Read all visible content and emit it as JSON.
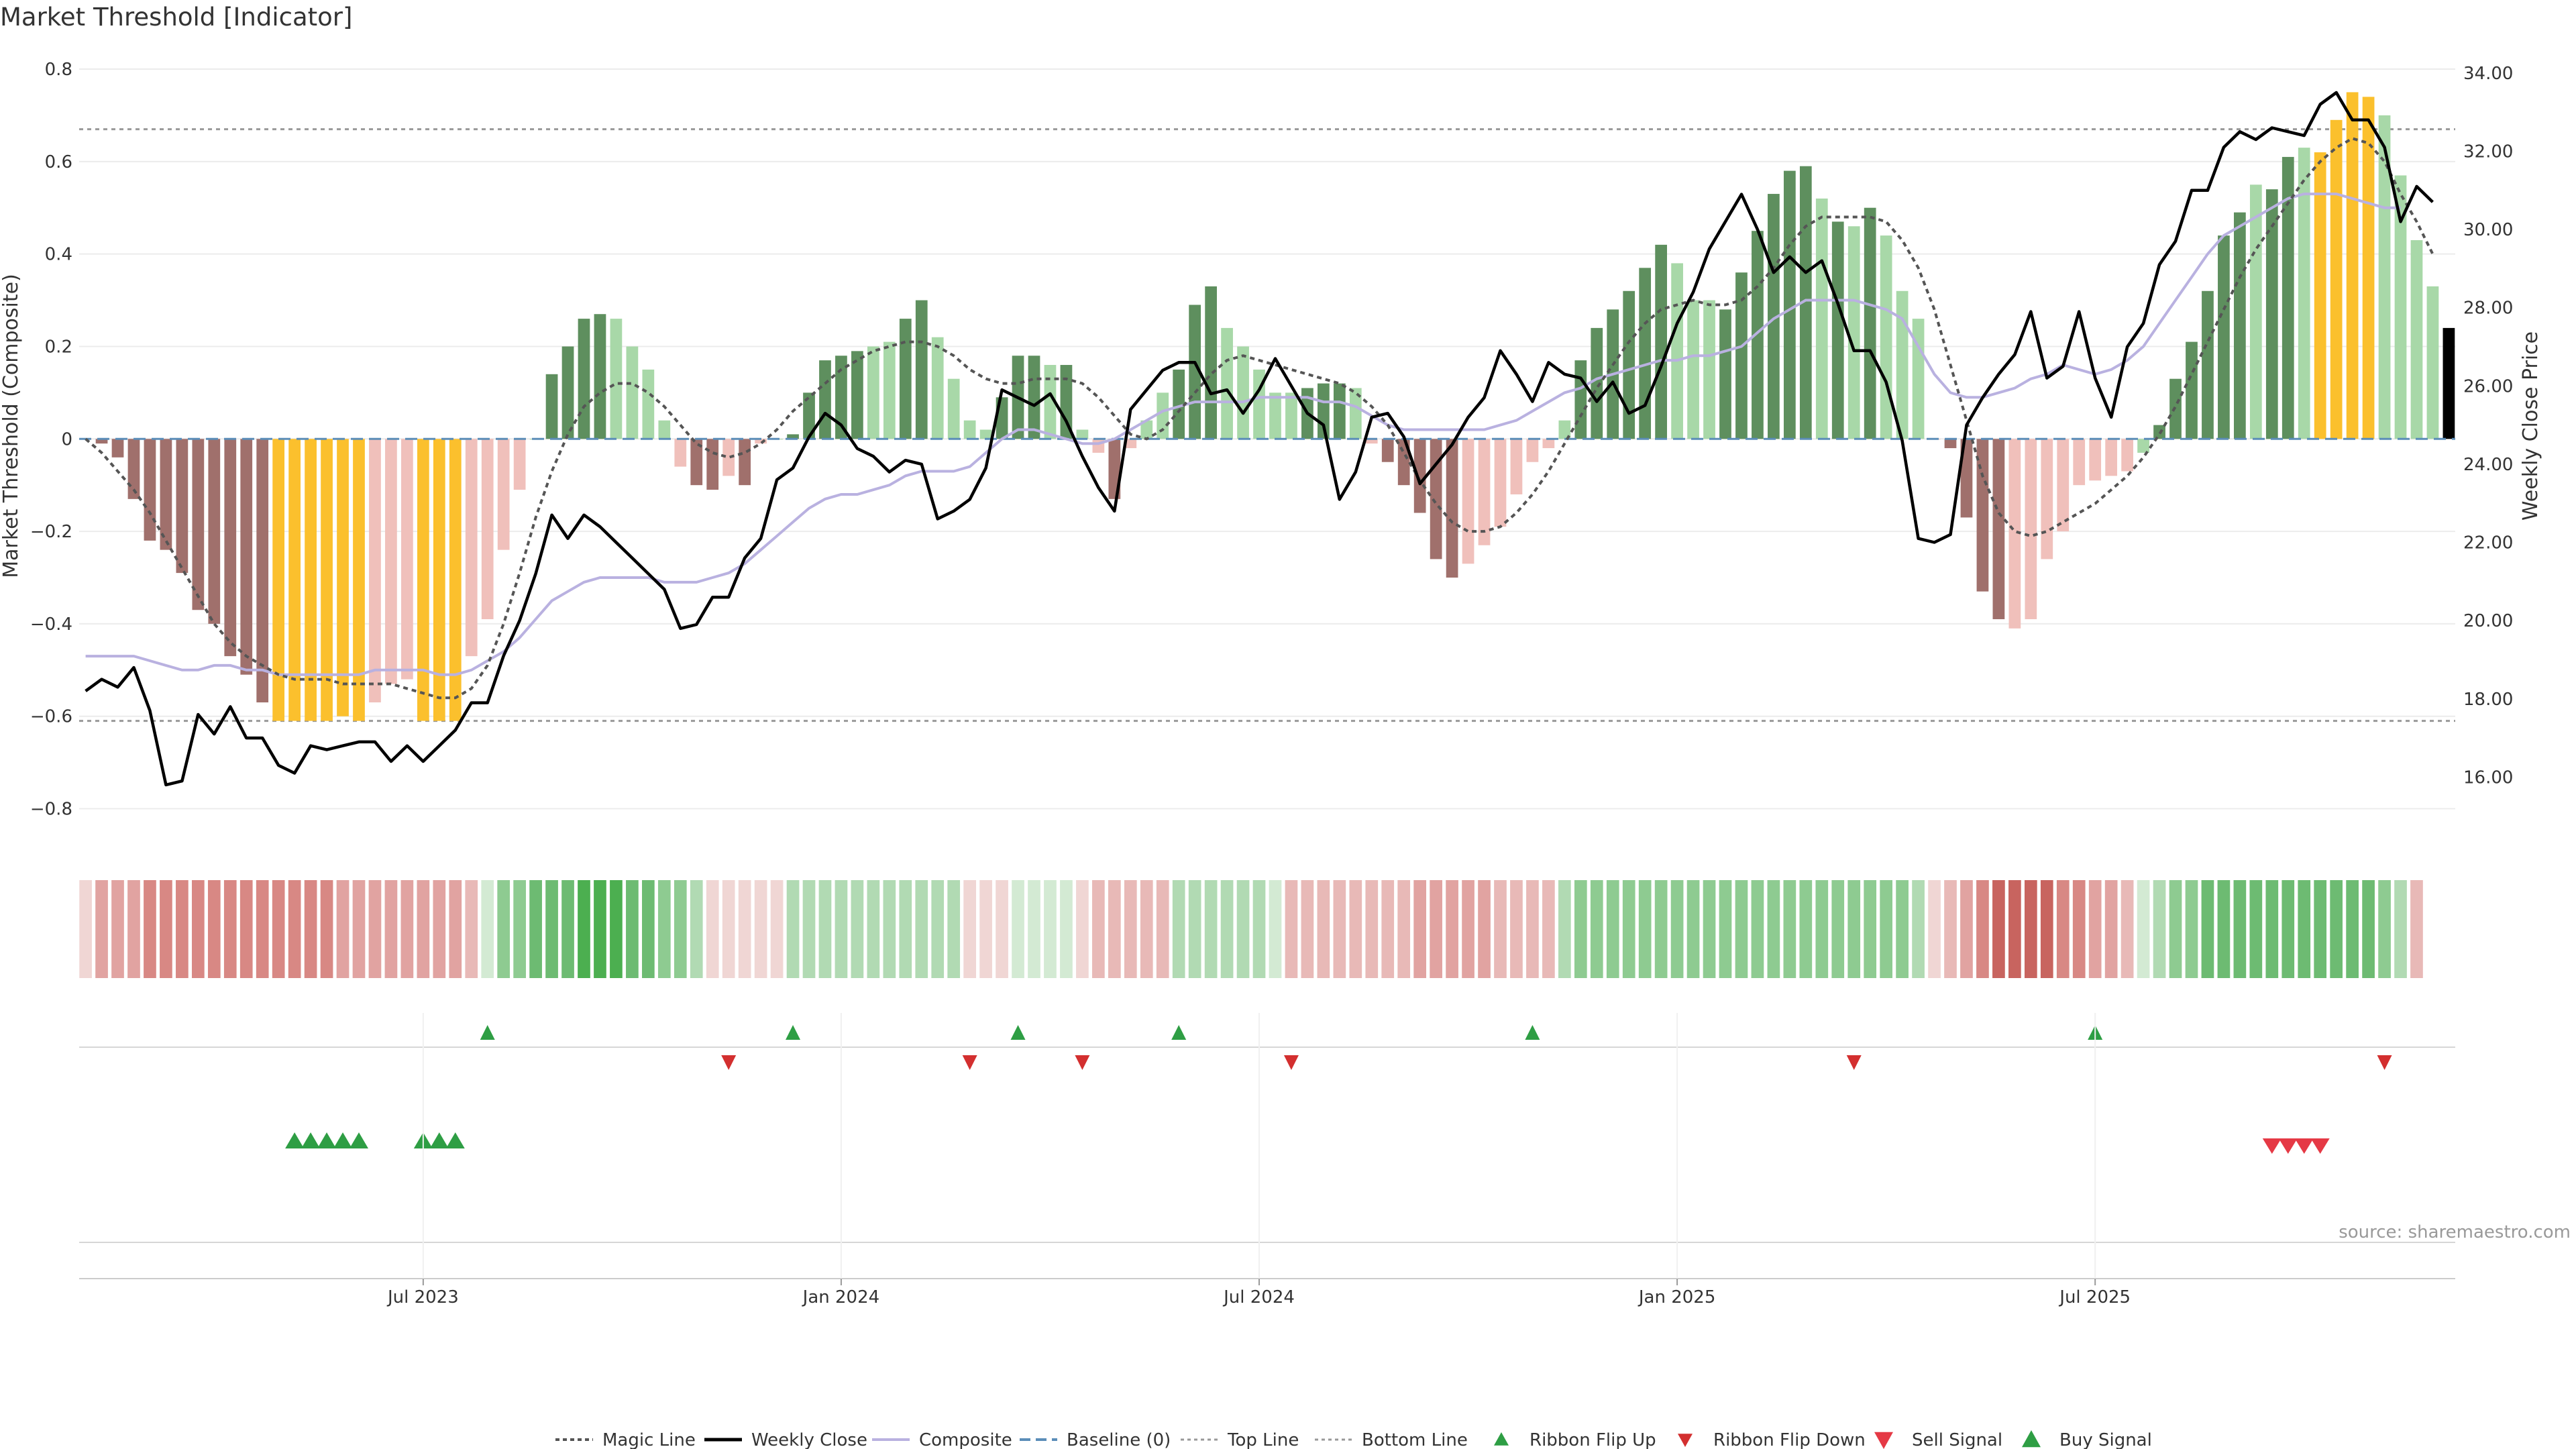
{
  "chart_data": {
    "type": "bar",
    "title": "Market Threshold [Indicator]",
    "ylabel_left": "Market Threshold (Composite)",
    "ylabel_right": "Weekly Close Price",
    "source": "source: sharemaestro.com",
    "ylim_left": [
      -0.85,
      0.8
    ],
    "ylim_right": [
      14.6,
      34.1
    ],
    "left_ticks": [
      0.8,
      0.6,
      0.4,
      0.2,
      0,
      -0.2,
      -0.4,
      -0.6,
      -0.8
    ],
    "left_tick_labels": [
      "0.8",
      "0.6",
      "0.4",
      "0.2",
      "0",
      "−0.2",
      "−0.4",
      "−0.6",
      "−0.8"
    ],
    "right_ticks": [
      34,
      32,
      30,
      28,
      26,
      24,
      22,
      20,
      18,
      16
    ],
    "right_tick_labels": [
      "34.00",
      "32.00",
      "30.00",
      "28.00",
      "26.00",
      "24.00",
      "22.00",
      "20.00",
      "18.00",
      "16.00"
    ],
    "x_tick_labels": [
      {
        "label": "Jul 2023",
        "index": 21
      },
      {
        "label": "Jan 2024",
        "index": 47
      },
      {
        "label": "Jul 2024",
        "index": 73
      },
      {
        "label": "Jan 2025",
        "index": 99
      },
      {
        "label": "Jul 2025",
        "index": 125
      }
    ],
    "top_line": 0.67,
    "bottom_line": -0.61,
    "baseline": 0,
    "composite": [
      0.0,
      -0.01,
      -0.04,
      -0.13,
      -0.22,
      -0.24,
      -0.29,
      -0.37,
      -0.4,
      -0.47,
      -0.51,
      -0.57,
      -0.61,
      -0.61,
      -0.61,
      -0.61,
      -0.6,
      -0.61,
      -0.57,
      -0.53,
      -0.52,
      -0.61,
      -0.61,
      -0.61,
      -0.47,
      -0.39,
      -0.24,
      -0.11,
      0.0,
      0.14,
      0.2,
      0.26,
      0.27,
      0.26,
      0.2,
      0.15,
      0.04,
      -0.06,
      -0.1,
      -0.11,
      -0.08,
      -0.1,
      -0.01,
      0.0,
      0.01,
      0.1,
      0.17,
      0.18,
      0.19,
      0.2,
      0.21,
      0.26,
      0.3,
      0.22,
      0.13,
      0.04,
      0.02,
      0.09,
      0.18,
      0.18,
      0.16,
      0.16,
      0.02,
      -0.03,
      -0.13,
      -0.02,
      0.04,
      0.1,
      0.15,
      0.29,
      0.33,
      0.24,
      0.2,
      0.15,
      0.1,
      0.1,
      0.11,
      0.12,
      0.12,
      0.11,
      -0.01,
      -0.05,
      -0.1,
      -0.16,
      -0.26,
      -0.3,
      -0.27,
      -0.23,
      -0.19,
      -0.12,
      -0.05,
      -0.02,
      0.04,
      0.17,
      0.24,
      0.28,
      0.32,
      0.37,
      0.42,
      0.38,
      0.3,
      0.3,
      0.28,
      0.36,
      0.45,
      0.53,
      0.58,
      0.59,
      0.52,
      0.47,
      0.46,
      0.5,
      0.44,
      0.32,
      0.26,
      0.0,
      -0.02,
      -0.17,
      -0.33,
      -0.39,
      -0.41,
      -0.39,
      -0.26,
      -0.2,
      -0.1,
      -0.09,
      -0.08,
      -0.07,
      -0.03,
      0.03,
      0.13,
      0.21,
      0.32,
      0.44,
      0.49,
      0.55,
      0.54,
      0.61,
      0.63,
      0.62,
      0.69,
      0.75,
      0.74,
      0.7,
      0.57,
      0.43,
      0.33,
      0.24
    ],
    "bar_colors": [
      "#f0c0bb",
      "#a0706c",
      "#a0706c",
      "#a0706c",
      "#a0706c",
      "#a0706c",
      "#a0706c",
      "#a0706c",
      "#a0706c",
      "#a0706c",
      "#a0706c",
      "#a0706c",
      "#fbc02d",
      "#fbc02d",
      "#fbc02d",
      "#fbc02d",
      "#fbc02d",
      "#fbc02d",
      "#f0c0bb",
      "#f0c0bb",
      "#f0c0bb",
      "#fbc02d",
      "#fbc02d",
      "#fbc02d",
      "#f0c0bb",
      "#f0c0bb",
      "#f0c0bb",
      "#f0c0bb",
      "#a8d8a8",
      "#5e8f5e",
      "#5e8f5e",
      "#5e8f5e",
      "#5e8f5e",
      "#a8d8a8",
      "#a8d8a8",
      "#a8d8a8",
      "#a8d8a8",
      "#f0c0bb",
      "#a0706c",
      "#a0706c",
      "#f0c0bb",
      "#a0706c",
      "#f0c0bb",
      "#a8d8a8",
      "#5e8f5e",
      "#5e8f5e",
      "#5e8f5e",
      "#5e8f5e",
      "#5e8f5e",
      "#a8d8a8",
      "#a8d8a8",
      "#5e8f5e",
      "#5e8f5e",
      "#a8d8a8",
      "#a8d8a8",
      "#a8d8a8",
      "#a8d8a8",
      "#5e8f5e",
      "#5e8f5e",
      "#5e8f5e",
      "#a8d8a8",
      "#5e8f5e",
      "#a8d8a8",
      "#f0c0bb",
      "#a0706c",
      "#f0c0bb",
      "#a8d8a8",
      "#a8d8a8",
      "#5e8f5e",
      "#5e8f5e",
      "#5e8f5e",
      "#a8d8a8",
      "#a8d8a8",
      "#a8d8a8",
      "#a8d8a8",
      "#a8d8a8",
      "#5e8f5e",
      "#5e8f5e",
      "#5e8f5e",
      "#a8d8a8",
      "#f0c0bb",
      "#a0706c",
      "#a0706c",
      "#a0706c",
      "#a0706c",
      "#a0706c",
      "#f0c0bb",
      "#f0c0bb",
      "#f0c0bb",
      "#f0c0bb",
      "#f0c0bb",
      "#f0c0bb",
      "#a8d8a8",
      "#5e8f5e",
      "#5e8f5e",
      "#5e8f5e",
      "#5e8f5e",
      "#5e8f5e",
      "#5e8f5e",
      "#a8d8a8",
      "#a8d8a8",
      "#a8d8a8",
      "#5e8f5e",
      "#5e8f5e",
      "#5e8f5e",
      "#5e8f5e",
      "#5e8f5e",
      "#5e8f5e",
      "#a8d8a8",
      "#5e8f5e",
      "#a8d8a8",
      "#5e8f5e",
      "#a8d8a8",
      "#a8d8a8",
      "#a8d8a8",
      "#f0c0bb",
      "#a0706c",
      "#a0706c",
      "#a0706c",
      "#a0706c",
      "#f0c0bb",
      "#f0c0bb",
      "#f0c0bb",
      "#f0c0bb",
      "#f0c0bb",
      "#f0c0bb",
      "#f0c0bb",
      "#f0c0bb",
      "#a8d8a8",
      "#5e8f5e",
      "#5e8f5e",
      "#5e8f5e",
      "#5e8f5e",
      "#5e8f5e",
      "#5e8f5e",
      "#a8d8a8",
      "#5e8f5e",
      "#5e8f5e",
      "#a8d8a8",
      "#fbc02d",
      "#fbc02d",
      "#fbc02d",
      "#fbc02d",
      "#a8d8a8",
      "#a8d8a8",
      "#a8d8a8",
      "#a8d8a8"
    ],
    "magic_line": [
      0.0,
      -0.03,
      -0.07,
      -0.11,
      -0.16,
      -0.22,
      -0.28,
      -0.34,
      -0.4,
      -0.44,
      -0.47,
      -0.49,
      -0.51,
      -0.52,
      -0.52,
      -0.52,
      -0.53,
      -0.53,
      -0.53,
      -0.53,
      -0.54,
      -0.55,
      -0.56,
      -0.56,
      -0.54,
      -0.49,
      -0.4,
      -0.29,
      -0.17,
      -0.07,
      0.01,
      0.07,
      0.1,
      0.12,
      0.12,
      0.1,
      0.07,
      0.03,
      -0.01,
      -0.03,
      -0.04,
      -0.03,
      -0.01,
      0.02,
      0.06,
      0.09,
      0.12,
      0.15,
      0.17,
      0.19,
      0.2,
      0.21,
      0.21,
      0.2,
      0.18,
      0.15,
      0.13,
      0.12,
      0.12,
      0.13,
      0.13,
      0.13,
      0.12,
      0.09,
      0.05,
      0.01,
      0.0,
      0.02,
      0.06,
      0.1,
      0.14,
      0.17,
      0.18,
      0.17,
      0.16,
      0.15,
      0.14,
      0.13,
      0.12,
      0.1,
      0.07,
      0.03,
      -0.03,
      -0.09,
      -0.14,
      -0.18,
      -0.2,
      -0.2,
      -0.19,
      -0.16,
      -0.12,
      -0.07,
      -0.01,
      0.05,
      0.11,
      0.16,
      0.21,
      0.25,
      0.28,
      0.29,
      0.3,
      0.29,
      0.29,
      0.3,
      0.33,
      0.37,
      0.42,
      0.46,
      0.48,
      0.48,
      0.48,
      0.48,
      0.47,
      0.43,
      0.37,
      0.28,
      0.16,
      0.04,
      -0.08,
      -0.16,
      -0.2,
      -0.21,
      -0.2,
      -0.18,
      -0.16,
      -0.14,
      -0.11,
      -0.08,
      -0.04,
      0.01,
      0.07,
      0.14,
      0.21,
      0.28,
      0.35,
      0.41,
      0.46,
      0.51,
      0.56,
      0.6,
      0.63,
      0.65,
      0.64,
      0.6,
      0.53,
      0.47,
      0.4
    ],
    "weekly_close": [
      18.2,
      18.5,
      18.3,
      18.8,
      17.7,
      15.8,
      15.9,
      17.6,
      17.1,
      17.8,
      17.0,
      17.0,
      16.3,
      16.1,
      16.8,
      16.7,
      16.8,
      16.9,
      16.9,
      16.4,
      16.8,
      16.4,
      16.8,
      17.2,
      17.9,
      17.9,
      19.1,
      20.0,
      21.2,
      22.7,
      22.1,
      22.7,
      22.4,
      22.0,
      21.6,
      21.2,
      20.8,
      19.8,
      19.9,
      20.6,
      20.6,
      21.6,
      22.1,
      23.6,
      23.9,
      24.7,
      25.3,
      25.0,
      24.4,
      24.2,
      23.8,
      24.1,
      24.0,
      22.6,
      22.8,
      23.1,
      23.9,
      25.9,
      25.7,
      25.5,
      25.8,
      25.1,
      24.2,
      23.4,
      22.8,
      25.4,
      25.9,
      26.4,
      26.6,
      26.6,
      25.8,
      25.9,
      25.3,
      25.9,
      26.7,
      26.0,
      25.3,
      25.0,
      23.1,
      23.8,
      25.2,
      25.3,
      24.7,
      23.5,
      24.0,
      24.5,
      25.2,
      25.7,
      26.9,
      26.3,
      25.6,
      26.6,
      26.3,
      26.2,
      25.6,
      26.1,
      25.3,
      25.5,
      26.5,
      27.6,
      28.4,
      29.5,
      30.2,
      30.9,
      30.0,
      28.9,
      29.3,
      28.9,
      29.2,
      28.1,
      26.9,
      26.9,
      26.1,
      24.6,
      22.1,
      22.0,
      22.2,
      25.0,
      25.7,
      26.3,
      26.8,
      27.9,
      26.2,
      26.5,
      27.9,
      26.2,
      25.2,
      27.0,
      27.6,
      29.1,
      29.7,
      31.0,
      31.0,
      32.1,
      32.5,
      32.3,
      32.6,
      32.5,
      32.4,
      33.2,
      33.5,
      32.8,
      32.8,
      32.1,
      30.2,
      31.1,
      30.7
    ],
    "composite_smooth": [
      -0.47,
      -0.47,
      -0.47,
      -0.47,
      -0.48,
      -0.49,
      -0.5,
      -0.5,
      -0.49,
      -0.49,
      -0.5,
      -0.5,
      -0.51,
      -0.51,
      -0.51,
      -0.51,
      -0.51,
      -0.51,
      -0.5,
      -0.5,
      -0.5,
      -0.5,
      -0.51,
      -0.51,
      -0.5,
      -0.48,
      -0.46,
      -0.43,
      -0.39,
      -0.35,
      -0.33,
      -0.31,
      -0.3,
      -0.3,
      -0.3,
      -0.3,
      -0.31,
      -0.31,
      -0.31,
      -0.3,
      -0.29,
      -0.27,
      -0.24,
      -0.21,
      -0.18,
      -0.15,
      -0.13,
      -0.12,
      -0.12,
      -0.11,
      -0.1,
      -0.08,
      -0.07,
      -0.07,
      -0.07,
      -0.06,
      -0.03,
      0.0,
      0.02,
      0.02,
      0.01,
      0.0,
      -0.01,
      -0.01,
      0.0,
      0.02,
      0.04,
      0.06,
      0.07,
      0.08,
      0.08,
      0.08,
      0.08,
      0.09,
      0.09,
      0.09,
      0.09,
      0.08,
      0.08,
      0.07,
      0.05,
      0.03,
      0.02,
      0.02,
      0.02,
      0.02,
      0.02,
      0.02,
      0.03,
      0.04,
      0.06,
      0.08,
      0.1,
      0.11,
      0.13,
      0.14,
      0.15,
      0.16,
      0.17,
      0.17,
      0.18,
      0.18,
      0.19,
      0.2,
      0.23,
      0.26,
      0.28,
      0.3,
      0.3,
      0.3,
      0.3,
      0.29,
      0.28,
      0.26,
      0.2,
      0.14,
      0.1,
      0.09,
      0.09,
      0.1,
      0.11,
      0.13,
      0.14,
      0.16,
      0.15,
      0.14,
      0.15,
      0.17,
      0.2,
      0.25,
      0.3,
      0.35,
      0.4,
      0.44,
      0.46,
      0.48,
      0.5,
      0.52,
      0.53,
      0.53,
      0.53,
      0.52,
      0.51,
      0.5,
      0.5
    ],
    "ribbon_colors": [
      "#f0d6d4",
      "#e1a3a1",
      "#e1a3a1",
      "#e1a3a1",
      "#d88884",
      "#d88884",
      "#d88884",
      "#d88884",
      "#d88884",
      "#d88884",
      "#d88884",
      "#d88884",
      "#d88884",
      "#d88884",
      "#d88884",
      "#d88884",
      "#e1a3a1",
      "#e1a3a1",
      "#e1a3a1",
      "#e1a3a1",
      "#e1a3a1",
      "#e1a3a1",
      "#e1a3a1",
      "#e1a3a1",
      "#e8b9b7",
      "#d3ead3",
      "#8ecb91",
      "#8ecb91",
      "#6dbb72",
      "#6dbb72",
      "#6dbb72",
      "#4caf50",
      "#4caf50",
      "#4caf50",
      "#6dbb72",
      "#6dbb72",
      "#8ecb91",
      "#8ecb91",
      "#b1dab3",
      "#f0d6d4",
      "#f0d6d4",
      "#f0d6d4",
      "#f0d6d4",
      "#f0d6d4",
      "#b1dab3",
      "#b1dab3",
      "#b1dab3",
      "#b1dab3",
      "#b1dab3",
      "#b1dab3",
      "#b1dab3",
      "#b1dab3",
      "#b1dab3",
      "#b1dab3",
      "#b1dab3",
      "#f0d6d4",
      "#f0d6d4",
      "#f0d6d4",
      "#d3ead3",
      "#d3ead3",
      "#d3ead3",
      "#d3ead3",
      "#f0d6d4",
      "#e8b9b7",
      "#e8b9b7",
      "#e8b9b7",
      "#e8b9b7",
      "#e8b9b7",
      "#b1dab3",
      "#b1dab3",
      "#b1dab3",
      "#b1dab3",
      "#b1dab3",
      "#b1dab3",
      "#d3ead3",
      "#e8b9b7",
      "#e8b9b7",
      "#e8b9b7",
      "#e8b9b7",
      "#e8b9b7",
      "#e8b9b7",
      "#e8b9b7",
      "#e8b9b7",
      "#e1a3a1",
      "#e1a3a1",
      "#e1a3a1",
      "#e1a3a1",
      "#e1a3a1",
      "#e8b9b7",
      "#e8b9b7",
      "#e8b9b7",
      "#e8b9b7",
      "#b1dab3",
      "#8ecb91",
      "#8ecb91",
      "#8ecb91",
      "#8ecb91",
      "#8ecb91",
      "#8ecb91",
      "#8ecb91",
      "#8ecb91",
      "#8ecb91",
      "#8ecb91",
      "#8ecb91",
      "#8ecb91",
      "#8ecb91",
      "#8ecb91",
      "#8ecb91",
      "#8ecb91",
      "#8ecb91",
      "#8ecb91",
      "#8ecb91",
      "#8ecb91",
      "#8ecb91",
      "#b1dab3",
      "#f0d6d4",
      "#e8b9b7",
      "#e1a3a1",
      "#d88884",
      "#c8645f",
      "#c8645f",
      "#c8645f",
      "#c8645f",
      "#d88884",
      "#d88884",
      "#e1a3a1",
      "#e1a3a1",
      "#e8b9b7",
      "#d3ead3",
      "#b1dab3",
      "#8ecb91",
      "#8ecb91",
      "#6dbb72",
      "#6dbb72",
      "#6dbb72",
      "#6dbb72",
      "#6dbb72",
      "#6dbb72",
      "#6dbb72",
      "#6dbb72",
      "#6dbb72",
      "#6dbb72",
      "#6dbb72",
      "#8ecb91",
      "#b1dab3",
      "#e8b9b7"
    ],
    "ribbon_flip_up": [
      25,
      44,
      58,
      68,
      90,
      125
    ],
    "ribbon_flip_down": [
      40,
      55,
      62,
      75,
      110,
      143
    ],
    "buy_signals": [
      13,
      14,
      15,
      16,
      17,
      21,
      22,
      23
    ],
    "sell_signals": [
      136,
      137,
      138,
      139
    ],
    "legend": [
      "Magic Line",
      "Weekly Close",
      "Composite",
      "Baseline (0)",
      "Top Line",
      "Bottom Line",
      "Ribbon Flip Up",
      "Ribbon Flip Down",
      "Sell Signal",
      "Buy Signal"
    ],
    "colors": {
      "magic": "#555555",
      "close": "#000000",
      "composite": "#b9b1e0",
      "baseline": "#5b8db8",
      "threshold": "#999999",
      "flip_up": "#2e9e44",
      "flip_down": "#d32f2f",
      "sell": "#e53945",
      "buy": "#2e9e44",
      "grid": "#ececec"
    }
  }
}
